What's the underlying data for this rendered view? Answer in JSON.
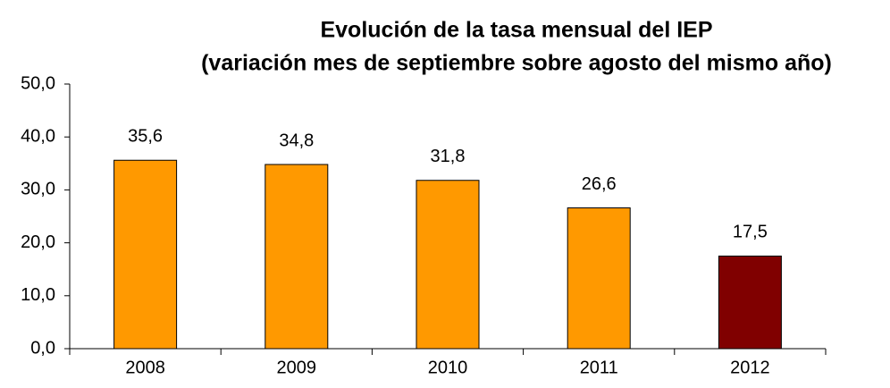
{
  "chart_data": {
    "type": "bar",
    "title": "Evolución de la tasa mensual del IEP",
    "subtitle": "(variación mes de septiembre sobre agosto del mismo año)",
    "categories": [
      "2008",
      "2009",
      "2010",
      "2011",
      "2012"
    ],
    "values": [
      35.6,
      34.8,
      31.8,
      26.6,
      17.5
    ],
    "value_labels": [
      "35,6",
      "34,8",
      "31,8",
      "26,6",
      "17,5"
    ],
    "colors": [
      "#ff9900",
      "#ff9900",
      "#ff9900",
      "#ff9900",
      "#800000"
    ],
    "ylim": [
      0,
      50
    ],
    "yticks": [
      {
        "value": 0,
        "label": "0,0"
      },
      {
        "value": 10,
        "label": "10,0"
      },
      {
        "value": 20,
        "label": "20,0"
      },
      {
        "value": 30,
        "label": "30,0"
      },
      {
        "value": 40,
        "label": "40,0"
      },
      {
        "value": 50,
        "label": "50,0"
      }
    ],
    "grid": false
  }
}
